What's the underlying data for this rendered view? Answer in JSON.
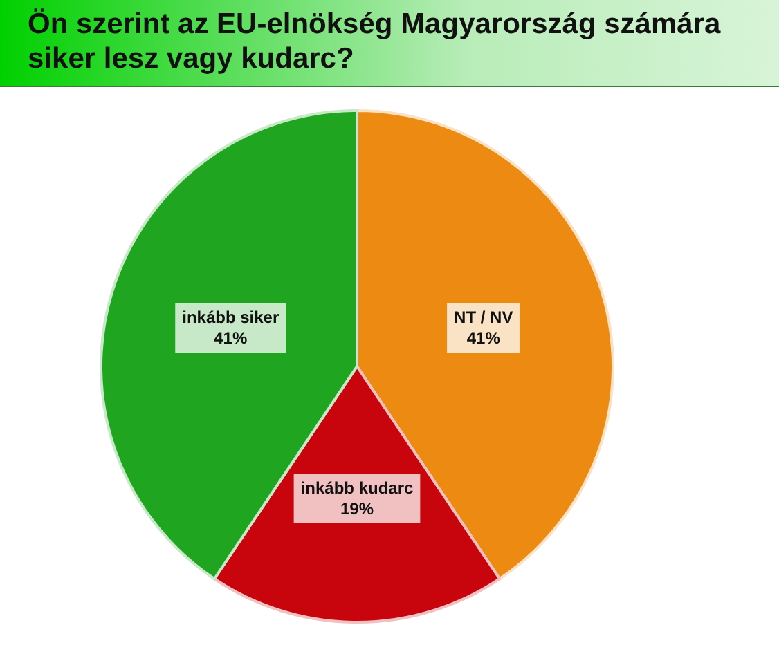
{
  "chart_data": {
    "type": "pie",
    "title": "Ön szerint az EU-elnökség Magyarország számára siker lesz vagy kudarc?",
    "categories": [
      "NT / NV",
      "inkább kudarc",
      "inkább siker"
    ],
    "values": [
      41,
      19,
      41
    ],
    "colors": [
      "#ec8a12",
      "#c8050c",
      "#1fa51f"
    ],
    "value_labels": [
      "41%",
      "19%",
      "41%"
    ],
    "legend": false
  }
}
